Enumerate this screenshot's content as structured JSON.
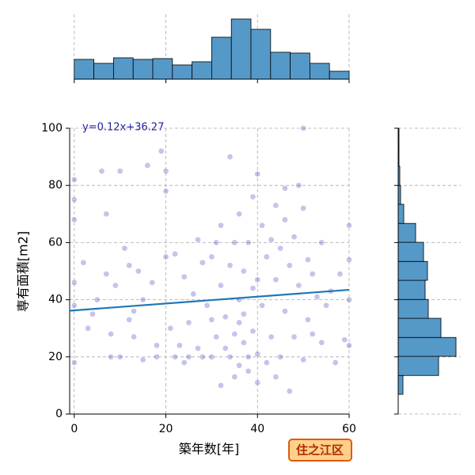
{
  "chart_data": [
    {
      "type": "scatter",
      "xlabel": "築年数[年]",
      "ylabel": "専有面積[m2]",
      "annotation": "y=0.12x+36.27",
      "badge": "住之江区",
      "xlim": [
        -1,
        60
      ],
      "ylim": [
        0,
        100
      ],
      "xticks": [
        0,
        20,
        40,
        60
      ],
      "yticks": [
        0,
        20,
        40,
        60,
        80,
        100
      ],
      "grid": true,
      "color": "#3b3bbf",
      "line_color": "#1f77b4",
      "regression": {
        "slope": 0.12,
        "intercept": 36.27
      },
      "x": [
        0,
        0,
        0,
        0,
        0,
        0,
        2,
        3,
        4,
        5,
        6,
        7,
        7,
        8,
        8,
        9,
        10,
        10,
        11,
        12,
        13,
        13,
        14,
        15,
        15,
        16,
        17,
        18,
        18,
        19,
        20,
        20,
        20,
        21,
        22,
        22,
        23,
        24,
        25,
        25,
        26,
        27,
        27,
        28,
        29,
        30,
        30,
        31,
        31,
        32,
        32,
        33,
        33,
        34,
        34,
        34,
        35,
        35,
        35,
        36,
        36,
        36,
        37,
        37,
        37,
        38,
        38,
        38,
        39,
        39,
        39,
        40,
        40,
        40,
        41,
        41,
        42,
        42,
        43,
        43,
        44,
        44,
        45,
        45,
        46,
        46,
        47,
        47,
        48,
        48,
        49,
        49,
        50,
        50,
        51,
        51,
        52,
        52,
        53,
        54,
        54,
        55,
        56,
        57,
        58,
        59,
        60,
        60,
        60,
        60,
        12,
        24,
        28,
        30,
        32,
        36,
        40,
        44,
        46,
        50
      ],
      "values": [
        38,
        46,
        68,
        82,
        18,
        75,
        53,
        30,
        35,
        40,
        85,
        70,
        49,
        28,
        20,
        45,
        20,
        85,
        58,
        33,
        27,
        36,
        50,
        40,
        19,
        87,
        46,
        24,
        20,
        92,
        85,
        78,
        55,
        30,
        20,
        56,
        24,
        48,
        20,
        32,
        42,
        23,
        61,
        20,
        38,
        20,
        55,
        27,
        60,
        66,
        45,
        23,
        34,
        90,
        20,
        52,
        60,
        28,
        13,
        40,
        70,
        17,
        25,
        50,
        35,
        20,
        60,
        15,
        76,
        29,
        44,
        84,
        21,
        11,
        66,
        38,
        55,
        18,
        27,
        61,
        47,
        73,
        20,
        58,
        79,
        36,
        8,
        52,
        62,
        27,
        80,
        45,
        100,
        19,
        33,
        54,
        49,
        28,
        41,
        60,
        25,
        38,
        43,
        18,
        49,
        26,
        66,
        54,
        40,
        24,
        52,
        18,
        53,
        33,
        10,
        32,
        47,
        13,
        68,
        72
      ]
    },
    {
      "type": "histogram",
      "orientation": "vertical",
      "color": "#5599c8",
      "bins": [
        0,
        4.29,
        8.57,
        12.86,
        17.14,
        21.43,
        25.71,
        30,
        34.29,
        38.57,
        42.86,
        47.14,
        51.43,
        55.71,
        60
      ],
      "values": [
        25,
        20,
        27,
        25,
        26,
        18,
        22,
        53,
        76,
        63,
        34,
        33,
        20,
        10
      ]
    },
    {
      "type": "histogram",
      "orientation": "horizontal",
      "color": "#5599c8",
      "bins": [
        6.9,
        13.5,
        20.2,
        26.8,
        33.5,
        40.1,
        46.8,
        53.4,
        60.1,
        66.7,
        73.4,
        80,
        86.7,
        93.3,
        100
      ],
      "values": [
        6,
        51,
        73,
        54,
        38,
        34,
        37,
        32,
        22,
        7,
        3,
        2,
        1,
        1
      ]
    }
  ]
}
